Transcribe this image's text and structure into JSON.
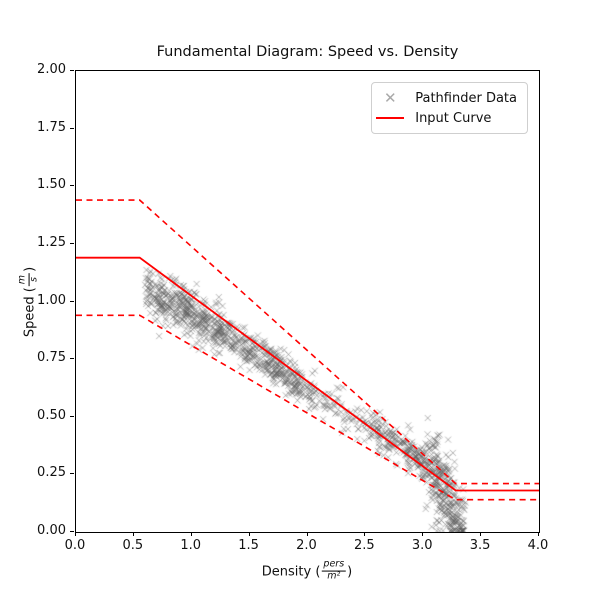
{
  "chart_data": {
    "type": "scatter",
    "title": "Fundamental Diagram: Speed vs. Density",
    "xlabel": "Density (pers/m²)",
    "ylabel": "Speed (m/s)",
    "xlabel_parts": {
      "prefix": "Density (",
      "numerator": "pers",
      "denominator": "m²",
      "suffix": ")"
    },
    "ylabel_parts": {
      "prefix": "Speed (",
      "numerator": "m",
      "denominator": "s",
      "suffix": ")"
    },
    "xlim": [
      0.0,
      4.0
    ],
    "ylim": [
      0.0,
      2.0
    ],
    "grid": false,
    "x_ticks": [
      {
        "value": 0.0,
        "label": "0.0"
      },
      {
        "value": 0.5,
        "label": "0.5"
      },
      {
        "value": 1.0,
        "label": "1.0"
      },
      {
        "value": 1.5,
        "label": "1.5"
      },
      {
        "value": 2.0,
        "label": "2.0"
      },
      {
        "value": 2.5,
        "label": "2.5"
      },
      {
        "value": 3.0,
        "label": "3.0"
      },
      {
        "value": 3.5,
        "label": "3.5"
      },
      {
        "value": 4.0,
        "label": "4.0"
      }
    ],
    "y_ticks": [
      {
        "value": 0.0,
        "label": "0.00"
      },
      {
        "value": 0.25,
        "label": "0.25"
      },
      {
        "value": 0.5,
        "label": "0.50"
      },
      {
        "value": 0.75,
        "label": "0.75"
      },
      {
        "value": 1.0,
        "label": "1.00"
      },
      {
        "value": 1.25,
        "label": "1.25"
      },
      {
        "value": 1.5,
        "label": "1.50"
      },
      {
        "value": 1.75,
        "label": "1.75"
      },
      {
        "value": 2.0,
        "label": "2.00"
      }
    ],
    "legend": {
      "position": "upper-right",
      "items": [
        {
          "label": "Pathfinder Data",
          "marker": "x",
          "color": "#a9a9a9"
        },
        {
          "label": "Input Curve",
          "marker": "line",
          "color": "#ff0000"
        }
      ]
    },
    "series": [
      {
        "name": "Input Curve",
        "type": "line",
        "style": "solid",
        "color": "#ff0000",
        "points": [
          [
            0.0,
            1.19
          ],
          [
            0.55,
            1.19
          ],
          [
            3.28,
            0.18
          ],
          [
            4.0,
            0.18
          ]
        ]
      },
      {
        "name": "Upper Bound (dashed)",
        "type": "line",
        "style": "dashed",
        "color": "#ff0000",
        "points": [
          [
            0.0,
            1.44
          ],
          [
            0.55,
            1.44
          ],
          [
            3.28,
            0.21
          ],
          [
            4.0,
            0.21
          ]
        ]
      },
      {
        "name": "Lower Bound (dashed)",
        "type": "line",
        "style": "dashed",
        "color": "#ff0000",
        "points": [
          [
            0.0,
            0.94
          ],
          [
            0.55,
            0.94
          ],
          [
            3.28,
            0.14
          ],
          [
            4.0,
            0.14
          ]
        ]
      }
    ],
    "scatter": {
      "name": "Pathfinder Data",
      "marker": "x",
      "color_rgba": [
        90,
        90,
        90,
        0.45
      ],
      "marker_half_size": 3,
      "seed": 42,
      "mean_curve": [
        [
          0.6,
          1.05
        ],
        [
          0.8,
          1.0
        ],
        [
          1.0,
          0.95
        ],
        [
          1.2,
          0.88
        ],
        [
          1.45,
          0.8
        ],
        [
          1.7,
          0.73
        ],
        [
          1.9,
          0.66
        ],
        [
          2.1,
          0.58
        ],
        [
          2.35,
          0.51
        ],
        [
          2.6,
          0.44
        ],
        [
          2.85,
          0.36
        ],
        [
          3.0,
          0.3
        ],
        [
          3.1,
          0.24
        ],
        [
          3.2,
          0.16
        ],
        [
          3.3,
          0.08
        ],
        [
          3.36,
          0.04
        ]
      ],
      "speed_sigma": 0.04,
      "start_extra_sigma": 0.012,
      "start_until": 1.25,
      "tail_sigma": 0.085,
      "tail_from": 3.02,
      "clamp_speed": [
        0.005,
        1.17
      ],
      "clusters": [
        {
          "range": [
            0.6,
            0.85
          ],
          "count": 140
        },
        {
          "range": [
            0.85,
            1.25
          ],
          "count": 260
        },
        {
          "range": [
            1.25,
            1.6
          ],
          "count": 150
        },
        {
          "range": [
            1.6,
            1.95
          ],
          "count": 190
        },
        {
          "range": [
            1.95,
            2.2
          ],
          "count": 55
        },
        {
          "range": [
            2.2,
            2.55
          ],
          "count": 55
        },
        {
          "range": [
            2.55,
            2.95
          ],
          "count": 150
        },
        {
          "range": [
            2.95,
            3.15
          ],
          "count": 130
        },
        {
          "range": [
            3.1,
            3.36
          ],
          "count": 230
        }
      ]
    }
  },
  "layout_colors": {
    "curve_red": "#ff0000",
    "spine_black": "#000000",
    "legend_border": "#cfcfcf"
  }
}
